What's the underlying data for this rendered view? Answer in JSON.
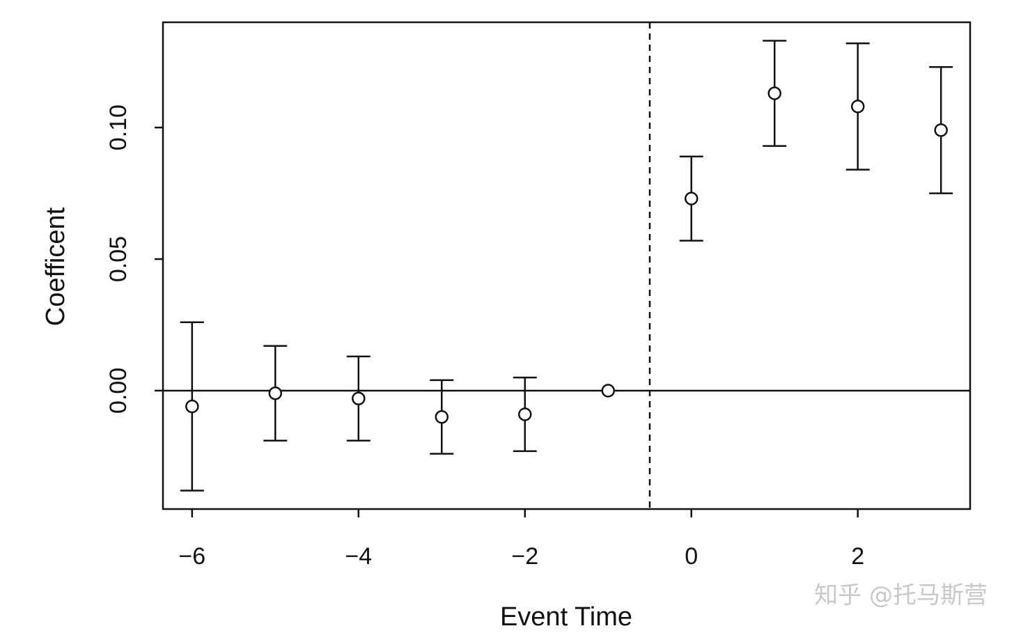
{
  "chart_data": {
    "type": "scatter",
    "xlabel": "Event Time",
    "ylabel": "Coefficent",
    "xlim": [
      -6.35,
      3.35
    ],
    "ylim": [
      -0.045,
      0.14
    ],
    "x_ticks": [
      -6,
      -4,
      -2,
      0,
      2
    ],
    "x_tick_labels": [
      "−6",
      "−4",
      "−2",
      "0",
      "2"
    ],
    "y_ticks": [
      0.0,
      0.05,
      0.1
    ],
    "y_tick_labels": [
      "0.00",
      "0.05",
      "0.10"
    ],
    "reference_hline": 0.0,
    "reference_vline": -0.5,
    "grid": false,
    "points": [
      {
        "x": -6,
        "y": -0.006,
        "lower": -0.038,
        "upper": 0.026
      },
      {
        "x": -5,
        "y": -0.001,
        "lower": -0.019,
        "upper": 0.017
      },
      {
        "x": -4,
        "y": -0.003,
        "lower": -0.019,
        "upper": 0.013
      },
      {
        "x": -3,
        "y": -0.01,
        "lower": -0.024,
        "upper": 0.004
      },
      {
        "x": -2,
        "y": -0.009,
        "lower": -0.023,
        "upper": 0.005
      },
      {
        "x": -1,
        "y": 0.0,
        "lower": null,
        "upper": null
      },
      {
        "x": 0,
        "y": 0.073,
        "lower": 0.057,
        "upper": 0.089
      },
      {
        "x": 1,
        "y": 0.113,
        "lower": 0.093,
        "upper": 0.133
      },
      {
        "x": 2,
        "y": 0.108,
        "lower": 0.084,
        "upper": 0.132
      },
      {
        "x": 3,
        "y": 0.099,
        "lower": 0.075,
        "upper": 0.123
      }
    ]
  },
  "watermark": "知乎 @托马斯营"
}
